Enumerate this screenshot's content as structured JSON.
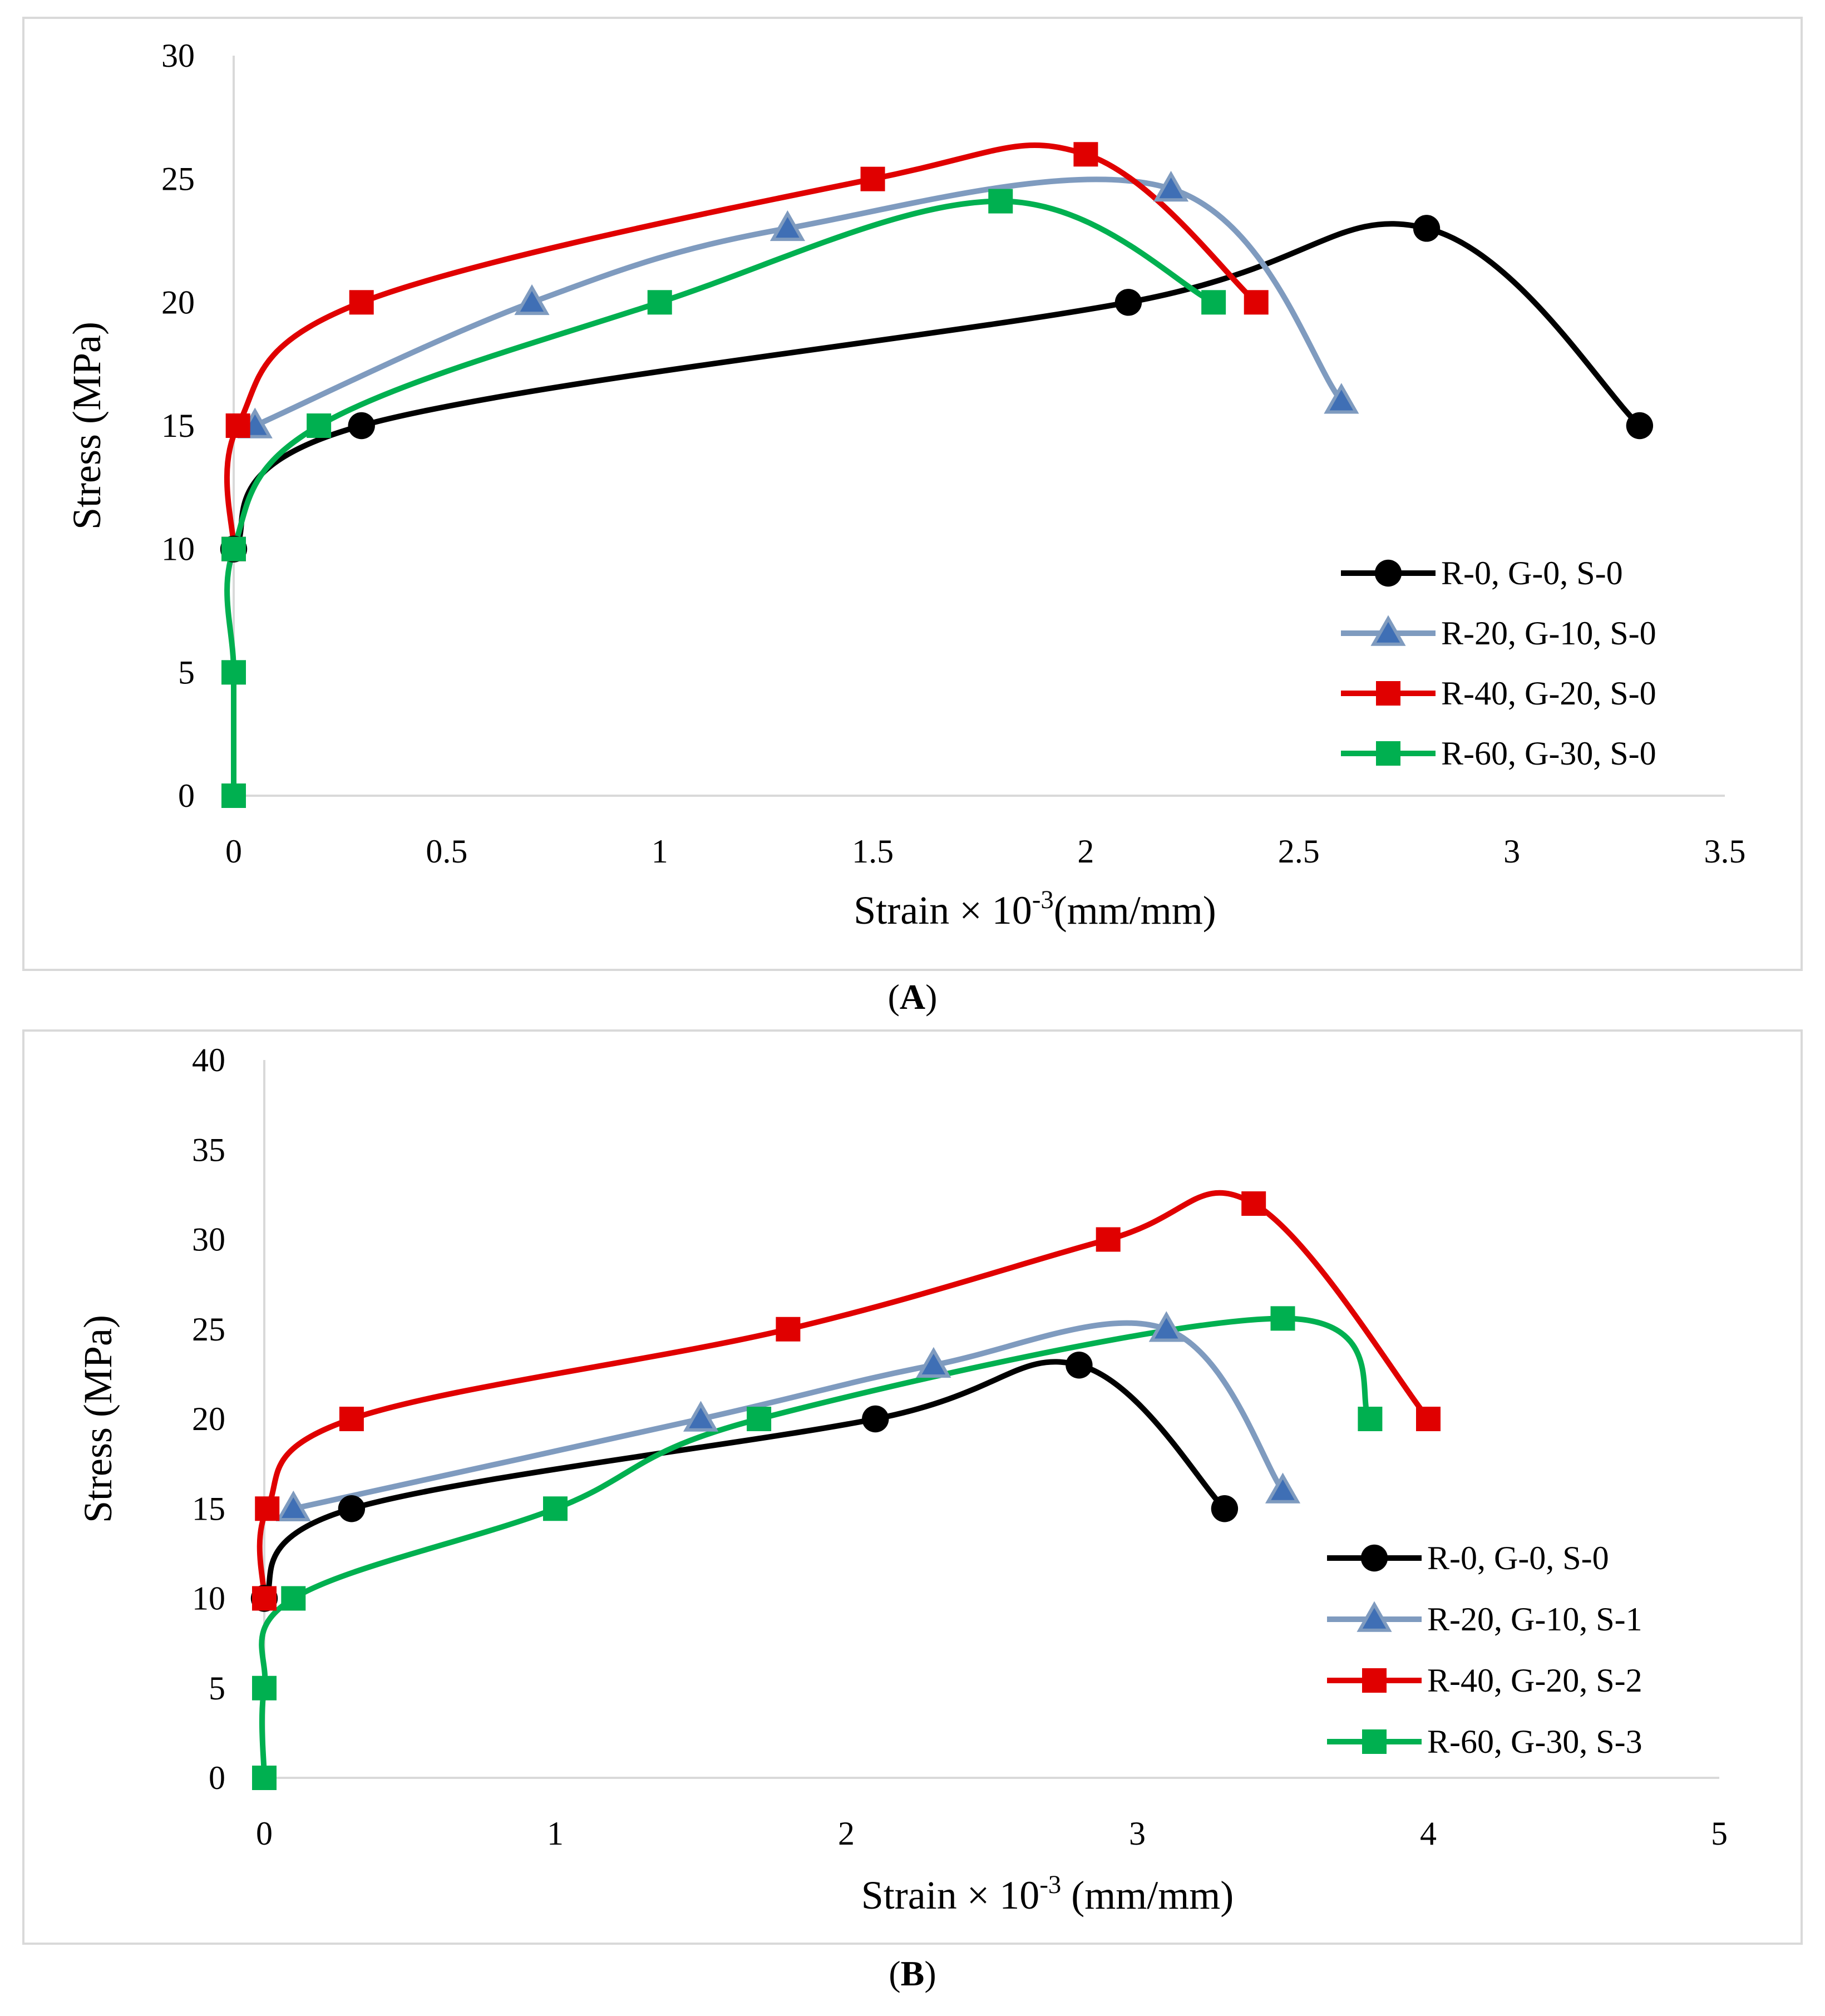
{
  "chart_data": [
    {
      "panel_label": "A",
      "type": "line",
      "xlabel": "Strain × 10",
      "xlabel_exp": "-3",
      "xlabel_unit": "(mm/mm)",
      "ylabel": "Stress (MPa)",
      "xlim": [
        0,
        3.5
      ],
      "ylim": [
        0,
        30
      ],
      "xticks": [
        0,
        0.5,
        1,
        1.5,
        2,
        2.5,
        3,
        3.5
      ],
      "yticks": [
        0,
        5,
        10,
        15,
        20,
        25,
        30
      ],
      "grid": false,
      "legend_position": "bottom-right",
      "series": [
        {
          "name": "R-0, G-0, S-0",
          "color": "#000000",
          "marker": "circle",
          "x": [
            0,
            0.3,
            2.1,
            2.8,
            3.3
          ],
          "y": [
            10,
            15,
            20,
            23,
            15
          ]
        },
        {
          "name": "R-20, G-10, S-0",
          "color": "#7f9bbf",
          "marker": "triangle",
          "x": [
            0.05,
            0.7,
            1.3,
            2.2,
            2.6
          ],
          "y": [
            15,
            20,
            23,
            24.6,
            16
          ]
        },
        {
          "name": "R-40, G-20, S-0",
          "color": "#e00000",
          "marker": "square",
          "x": [
            0,
            0.01,
            0.3,
            1.5,
            2.0,
            2.4
          ],
          "y": [
            10,
            15,
            20,
            25,
            26,
            20
          ]
        },
        {
          "name": "R-60, G-30, S-0",
          "color": "#00b050",
          "marker": "square",
          "x": [
            0,
            0,
            0,
            0.2,
            1.0,
            1.8,
            2.3
          ],
          "y": [
            0,
            5,
            10,
            15,
            20,
            24.1,
            20
          ]
        }
      ]
    },
    {
      "panel_label": "B",
      "type": "line",
      "xlabel": "Strain × 10",
      "xlabel_exp": "-3",
      "xlabel_unit": " (mm/mm)",
      "ylabel": "Stress (MPa)",
      "xlim": [
        0,
        5
      ],
      "ylim": [
        0,
        40
      ],
      "xticks": [
        0,
        1,
        2,
        3,
        4,
        5
      ],
      "yticks": [
        0,
        5,
        10,
        15,
        20,
        25,
        30,
        35,
        40
      ],
      "grid": false,
      "legend_position": "bottom-right",
      "series": [
        {
          "name": "R-0, G-0, S-0",
          "color": "#000000",
          "marker": "circle",
          "x": [
            0,
            0.3,
            2.1,
            2.8,
            3.3
          ],
          "y": [
            10,
            15,
            20,
            23,
            15
          ]
        },
        {
          "name": "R-20, G-10, S-1",
          "color": "#7f9bbf",
          "marker": "triangle",
          "x": [
            0.1,
            1.5,
            2.3,
            3.1,
            3.5
          ],
          "y": [
            15,
            20,
            23,
            25,
            16
          ]
        },
        {
          "name": "R-40, G-20, S-2",
          "color": "#e00000",
          "marker": "square",
          "x": [
            0,
            0.01,
            0.3,
            1.8,
            2.9,
            3.4,
            4.0
          ],
          "y": [
            10,
            15,
            20,
            25,
            30,
            32,
            20
          ]
        },
        {
          "name": "R-60, G-30, S-3",
          "color": "#00b050",
          "marker": "square",
          "x": [
            0,
            0,
            0.1,
            1.0,
            1.7,
            3.5,
            3.8
          ],
          "y": [
            0,
            5,
            10,
            15,
            20,
            25.6,
            20
          ]
        }
      ]
    }
  ]
}
